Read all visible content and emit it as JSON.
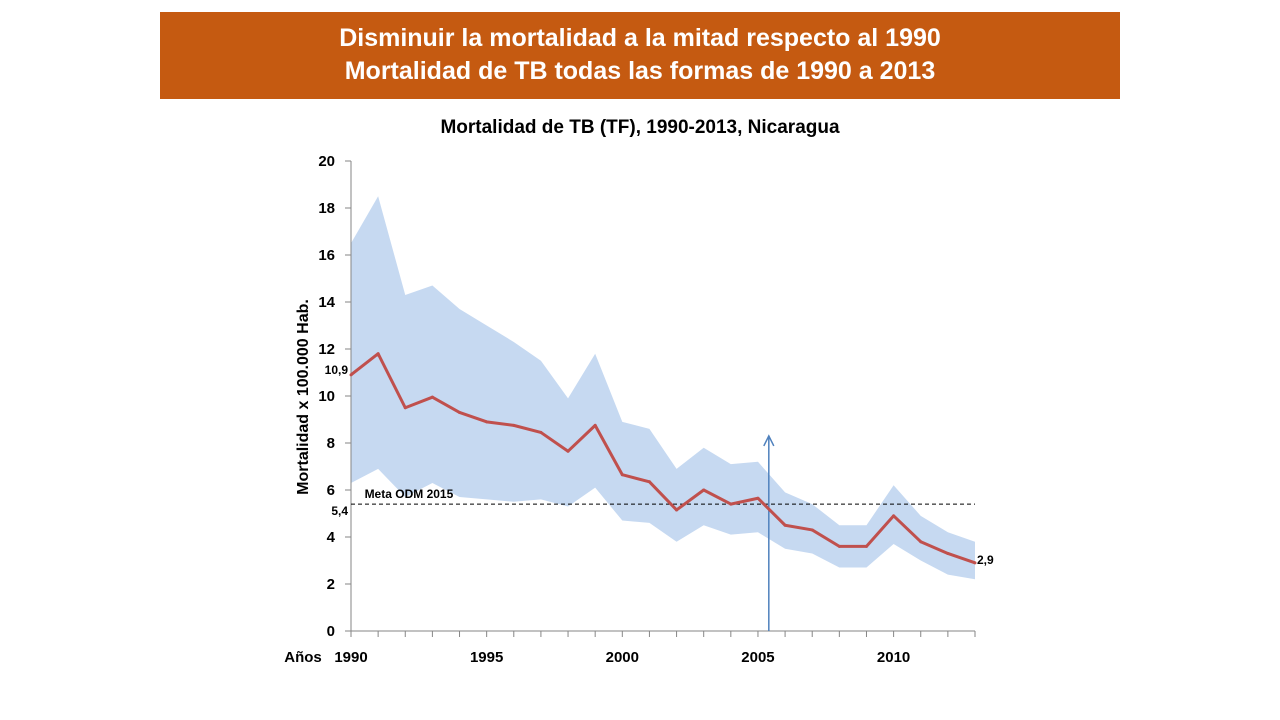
{
  "header": {
    "line1": "Disminuir la mortalidad a la mitad respecto al 1990",
    "line2": "Mortalidad de TB todas las formas de 1990 a 2013"
  },
  "chart_data": {
    "type": "line",
    "title": "Mortalidad de TB (TF), 1990-2013, Nicaragua",
    "ylabel": "Mortalidad x 100.000 Hab.",
    "xlabel": "Años",
    "ylim": [
      0,
      20
    ],
    "xlim": [
      1990,
      2013
    ],
    "yticks": [
      "0",
      "2",
      "4",
      "6",
      "8",
      "10",
      "12",
      "14",
      "16",
      "18",
      "20"
    ],
    "xticks": [
      {
        "value": 1990,
        "label": "1990"
      },
      {
        "value": 1995,
        "label": "1995"
      },
      {
        "value": 2000,
        "label": "2000"
      },
      {
        "value": 2005,
        "label": "2005"
      },
      {
        "value": 2010,
        "label": "2010"
      }
    ],
    "x": [
      1990,
      1991,
      1992,
      1993,
      1994,
      1995,
      1996,
      1997,
      1998,
      1999,
      2000,
      2001,
      2002,
      2003,
      2004,
      2005,
      2006,
      2007,
      2008,
      2009,
      2010,
      2011,
      2012,
      2013
    ],
    "series": [
      {
        "name": "",
        "role": "estimate",
        "color": "#c0504d",
        "values": [
          10.9,
          11.8,
          9.5,
          9.95,
          9.3,
          8.9,
          8.75,
          8.45,
          7.65,
          8.75,
          6.65,
          6.35,
          5.15,
          6.0,
          5.4,
          5.65,
          4.5,
          4.3,
          3.6,
          3.6,
          4.9,
          3.8,
          3.3,
          2.9
        ]
      },
      {
        "name": "",
        "role": "upper",
        "color": "#c6d9f1",
        "values": [
          16.5,
          18.5,
          14.3,
          14.7,
          13.7,
          13.0,
          12.3,
          11.5,
          9.9,
          11.8,
          8.9,
          8.6,
          6.9,
          7.8,
          7.1,
          7.2,
          5.9,
          5.4,
          4.5,
          4.5,
          6.2,
          4.9,
          4.2,
          3.8
        ]
      },
      {
        "name": "",
        "role": "lower",
        "color": "#c6d9f1",
        "values": [
          6.3,
          6.9,
          5.7,
          6.3,
          5.7,
          5.6,
          5.5,
          5.6,
          5.3,
          6.1,
          4.7,
          4.6,
          3.8,
          4.5,
          4.1,
          4.2,
          3.5,
          3.3,
          2.7,
          2.7,
          3.7,
          3.0,
          2.4,
          2.2
        ]
      }
    ],
    "target_line": {
      "label": "Meta ODM 2015",
      "value": 5.4,
      "value_label": "5,4"
    },
    "first_value_label": "10,9",
    "last_value_label": "2,9",
    "marker_arrow_x": 2005.4,
    "grid": false
  }
}
